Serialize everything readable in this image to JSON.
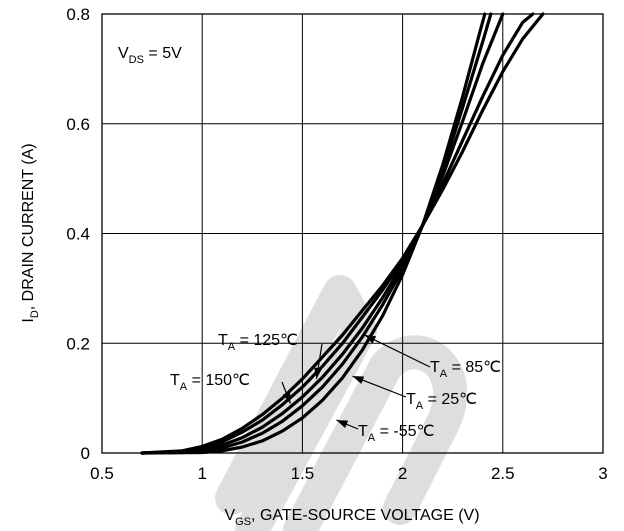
{
  "chart_data": {
    "type": "line",
    "xlabel": "GATE-SOURCE VOLTAGE (V)",
    "xlabel_prefix": "V",
    "xlabel_sub": "GS",
    "xlabel_sep": ", ",
    "ylabel": "DRAIN CURRENT (A)",
    "ylabel_prefix": "I",
    "ylabel_sub": "D",
    "ylabel_sep": ", ",
    "xlim": [
      0.5,
      3
    ],
    "ylim": [
      0,
      0.8
    ],
    "x_ticks": [
      "0.5",
      "1",
      "1.5",
      "2",
      "2.5",
      "3"
    ],
    "y_ticks": [
      "0",
      "0.2",
      "0.4",
      "0.6",
      "0.8"
    ],
    "grid": true,
    "condition": {
      "prefix": "V",
      "sub": "DS",
      "suffix": " = 5V"
    },
    "series": [
      {
        "name": "TA = 150°C",
        "label": {
          "prefix": "T",
          "sub": "A",
          "suffix": " = 150℃"
        },
        "points": [
          [
            0.7,
            0.0
          ],
          [
            0.9,
            0.004
          ],
          [
            1.0,
            0.012
          ],
          [
            1.1,
            0.025
          ],
          [
            1.2,
            0.045
          ],
          [
            1.3,
            0.07
          ],
          [
            1.4,
            0.1
          ],
          [
            1.5,
            0.135
          ],
          [
            1.6,
            0.175
          ],
          [
            1.7,
            0.215
          ],
          [
            1.8,
            0.26
          ],
          [
            1.9,
            0.305
          ],
          [
            2.0,
            0.355
          ],
          [
            2.1,
            0.415
          ],
          [
            2.2,
            0.48
          ],
          [
            2.3,
            0.55
          ],
          [
            2.4,
            0.625
          ],
          [
            2.5,
            0.695
          ],
          [
            2.6,
            0.755
          ],
          [
            2.7,
            0.8
          ]
        ]
      },
      {
        "name": "TA = 125°C",
        "label": {
          "prefix": "T",
          "sub": "A",
          "suffix": " = 125℃"
        },
        "points": [
          [
            0.7,
            0.0
          ],
          [
            0.9,
            0.003
          ],
          [
            1.0,
            0.009
          ],
          [
            1.1,
            0.02
          ],
          [
            1.2,
            0.038
          ],
          [
            1.3,
            0.06
          ],
          [
            1.4,
            0.088
          ],
          [
            1.5,
            0.12
          ],
          [
            1.6,
            0.158
          ],
          [
            1.7,
            0.2
          ],
          [
            1.8,
            0.248
          ],
          [
            1.9,
            0.297
          ],
          [
            2.0,
            0.35
          ],
          [
            2.1,
            0.415
          ],
          [
            2.2,
            0.49
          ],
          [
            2.3,
            0.57
          ],
          [
            2.4,
            0.65
          ],
          [
            2.5,
            0.725
          ],
          [
            2.6,
            0.785
          ],
          [
            2.65,
            0.8
          ]
        ]
      },
      {
        "name": "TA = 85°C",
        "label": {
          "prefix": "T",
          "sub": "A",
          "suffix": " = 85℃"
        },
        "points": [
          [
            0.7,
            0.0
          ],
          [
            0.9,
            0.002
          ],
          [
            1.0,
            0.006
          ],
          [
            1.1,
            0.014
          ],
          [
            1.2,
            0.028
          ],
          [
            1.3,
            0.047
          ],
          [
            1.4,
            0.072
          ],
          [
            1.5,
            0.102
          ],
          [
            1.6,
            0.138
          ],
          [
            1.7,
            0.18
          ],
          [
            1.8,
            0.228
          ],
          [
            1.9,
            0.283
          ],
          [
            2.0,
            0.343
          ],
          [
            2.1,
            0.415
          ],
          [
            2.2,
            0.505
          ],
          [
            2.3,
            0.605
          ],
          [
            2.4,
            0.71
          ],
          [
            2.5,
            0.8
          ]
        ]
      },
      {
        "name": "TA = 25°C",
        "label": {
          "prefix": "T",
          "sub": "A",
          "suffix": " = 25℃"
        },
        "points": [
          [
            0.7,
            0.0
          ],
          [
            0.9,
            0.001
          ],
          [
            1.0,
            0.003
          ],
          [
            1.1,
            0.009
          ],
          [
            1.2,
            0.02
          ],
          [
            1.3,
            0.036
          ],
          [
            1.4,
            0.058
          ],
          [
            1.5,
            0.086
          ],
          [
            1.6,
            0.12
          ],
          [
            1.7,
            0.162
          ],
          [
            1.8,
            0.212
          ],
          [
            1.9,
            0.27
          ],
          [
            2.0,
            0.335
          ],
          [
            2.1,
            0.415
          ],
          [
            2.2,
            0.515
          ],
          [
            2.3,
            0.63
          ],
          [
            2.4,
            0.75
          ],
          [
            2.44,
            0.8
          ]
        ]
      },
      {
        "name": "TA = -55°C",
        "label": {
          "prefix": "T",
          "sub": "A",
          "suffix": " = -55℃"
        },
        "points": [
          [
            0.7,
            0.0
          ],
          [
            1.0,
            0.001
          ],
          [
            1.1,
            0.004
          ],
          [
            1.2,
            0.011
          ],
          [
            1.3,
            0.022
          ],
          [
            1.4,
            0.04
          ],
          [
            1.5,
            0.064
          ],
          [
            1.6,
            0.096
          ],
          [
            1.7,
            0.137
          ],
          [
            1.8,
            0.188
          ],
          [
            1.9,
            0.25
          ],
          [
            2.0,
            0.325
          ],
          [
            2.1,
            0.415
          ],
          [
            2.2,
            0.525
          ],
          [
            2.3,
            0.65
          ],
          [
            2.38,
            0.76
          ],
          [
            2.41,
            0.8
          ]
        ]
      }
    ],
    "annotations": [
      {
        "series": 1,
        "at": [
          1.57,
          0.135
        ]
      },
      {
        "series": 0,
        "at": [
          1.44,
          0.09
        ]
      },
      {
        "series": 2,
        "at": [
          1.81,
          0.215
        ]
      },
      {
        "series": 3,
        "at": [
          1.75,
          0.14
        ]
      },
      {
        "series": 4,
        "at": [
          1.67,
          0.06
        ]
      }
    ]
  }
}
